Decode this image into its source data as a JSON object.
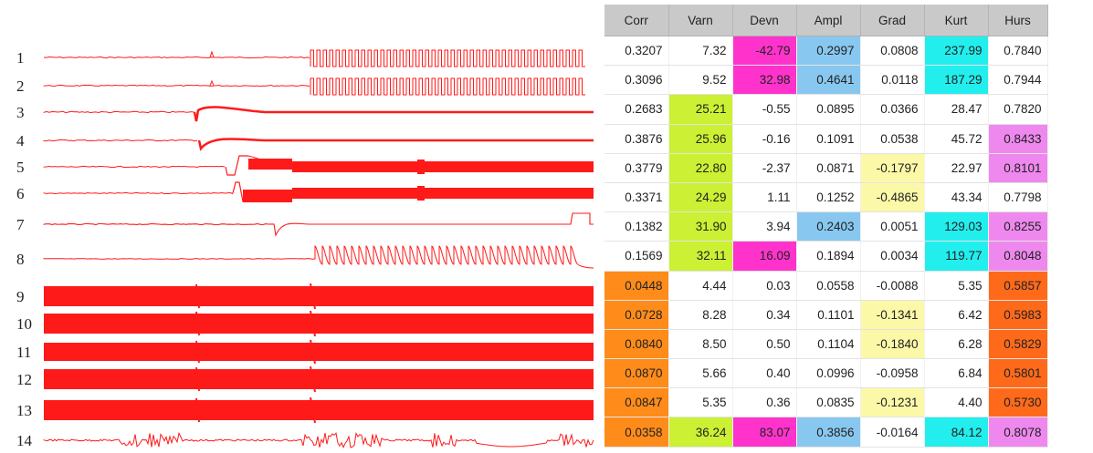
{
  "chart_data": [
    {
      "type": "line",
      "row_labels": [
        "1",
        "2",
        "3",
        "4",
        "5",
        "6",
        "7",
        "8",
        "9",
        "10",
        "11",
        "12",
        "13",
        "14"
      ],
      "trace_color": "#ff1a1a"
    },
    {
      "type": "table",
      "columns": [
        "Corr",
        "Varn",
        "Devn",
        "Ampl",
        "Grad",
        "Kurt",
        "Hurs"
      ],
      "rows": [
        [
          "0.3207",
          "7.32",
          "-42.79",
          "0.2997",
          "0.0808",
          "237.99",
          "0.7840"
        ],
        [
          "0.3096",
          "9.52",
          "32.98",
          "0.4641",
          "0.0118",
          "187.29",
          "0.7944"
        ],
        [
          "0.2683",
          "25.21",
          "-0.55",
          "0.0895",
          "0.0366",
          "28.47",
          "0.7820"
        ],
        [
          "0.3876",
          "25.96",
          "-0.16",
          "0.1091",
          "0.0538",
          "45.72",
          "0.8433"
        ],
        [
          "0.3779",
          "22.80",
          "-2.37",
          "0.0871",
          "-0.1797",
          "22.97",
          "0.8101"
        ],
        [
          "0.3371",
          "24.29",
          "1.11",
          "0.1252",
          "-0.4865",
          "43.34",
          "0.7798"
        ],
        [
          "0.1382",
          "31.90",
          "3.94",
          "0.2403",
          "0.0051",
          "129.03",
          "0.8255"
        ],
        [
          "0.1569",
          "32.11",
          "16.09",
          "0.1894",
          "0.0034",
          "119.77",
          "0.8048"
        ],
        [
          "0.0448",
          "4.44",
          "0.03",
          "0.0558",
          "-0.0088",
          "5.35",
          "0.5857"
        ],
        [
          "0.0728",
          "8.28",
          "0.34",
          "0.1101",
          "-0.1341",
          "6.42",
          "0.5983"
        ],
        [
          "0.0840",
          "8.50",
          "0.50",
          "0.1104",
          "-0.1840",
          "6.28",
          "0.5829"
        ],
        [
          "0.0870",
          "5.66",
          "0.40",
          "0.0996",
          "-0.0958",
          "6.84",
          "0.5801"
        ],
        [
          "0.0847",
          "5.35",
          "0.36",
          "0.0835",
          "-0.1231",
          "4.40",
          "0.5730"
        ],
        [
          "0.0358",
          "36.24",
          "83.07",
          "0.3856",
          "-0.0164",
          "84.12",
          "0.8078"
        ]
      ],
      "cell_colors": [
        [
          null,
          null,
          "#ff33cc",
          "#88c8f0",
          null,
          "#22eeee",
          null
        ],
        [
          null,
          null,
          "#ff33cc",
          "#88c8f0",
          null,
          "#22eeee",
          null
        ],
        [
          null,
          "#ccf033",
          null,
          null,
          null,
          null,
          null
        ],
        [
          null,
          "#ccf033",
          null,
          null,
          null,
          null,
          "#ee88ee"
        ],
        [
          null,
          "#ccf033",
          null,
          null,
          "#fbf8a8",
          null,
          "#ee88ee"
        ],
        [
          null,
          "#ccf033",
          null,
          null,
          "#fbf8a8",
          null,
          null
        ],
        [
          null,
          "#ccf033",
          null,
          "#88c8f0",
          null,
          "#22eeee",
          "#ee88ee"
        ],
        [
          null,
          "#ccf033",
          "#ff33cc",
          null,
          null,
          "#22eeee",
          "#ee88ee"
        ],
        [
          "#ff8c1a",
          null,
          null,
          null,
          null,
          null,
          "#ff6a1a"
        ],
        [
          "#ff8c1a",
          null,
          null,
          null,
          "#fbf8a8",
          null,
          "#ff6a1a"
        ],
        [
          "#ff8c1a",
          null,
          null,
          null,
          "#fbf8a8",
          null,
          "#ff6a1a"
        ],
        [
          "#ff8c1a",
          null,
          null,
          null,
          null,
          null,
          "#ff6a1a"
        ],
        [
          "#ff8c1a",
          null,
          null,
          null,
          "#fbf8a8",
          null,
          "#ff6a1a"
        ],
        [
          "#ff8c1a",
          "#ccf033",
          "#ff33cc",
          "#88c8f0",
          null,
          "#22eeee",
          "#ee88ee"
        ]
      ]
    }
  ]
}
